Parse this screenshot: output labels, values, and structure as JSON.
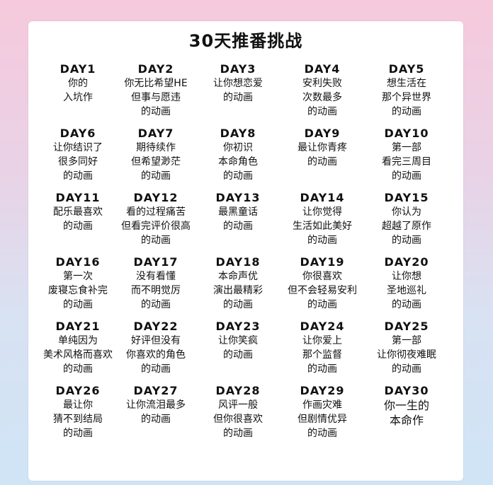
{
  "title": "30天推番挑战",
  "days": [
    {
      "label": "DAY1",
      "text": "你的\n入坑作"
    },
    {
      "label": "DAY2",
      "text": "你无比希望HE\n但事与愿违\n的动画"
    },
    {
      "label": "DAY3",
      "text": "让你想恋爱\n的动画"
    },
    {
      "label": "DAY4",
      "text": "安利失败\n次数最多\n的动画"
    },
    {
      "label": "DAY5",
      "text": "想生活在\n那个异世界\n的动画"
    },
    {
      "label": "DAY6",
      "text": "让你结识了\n很多同好\n的动画"
    },
    {
      "label": "DAY7",
      "text": "期待续作\n但希望渺茫\n的动画"
    },
    {
      "label": "DAY8",
      "text": "你初识\n本命角色\n的动画"
    },
    {
      "label": "DAY9",
      "text": "最让你青疼\n的动画"
    },
    {
      "label": "DAY10",
      "text": "第一部\n看完三周目\n的动画"
    },
    {
      "label": "DAY11",
      "text": "配乐最喜欢\n的动画"
    },
    {
      "label": "DAY12",
      "text": "看的过程痛苦\n但看完评价很高\n的动画"
    },
    {
      "label": "DAY13",
      "text": "最黑童话\n的动画"
    },
    {
      "label": "DAY14",
      "text": "让你觉得\n生活如此美好\n的动画"
    },
    {
      "label": "DAY15",
      "text": "你认为\n超越了原作\n的动画"
    },
    {
      "label": "DAY16",
      "text": "第一次\n废寝忘食补完\n的动画"
    },
    {
      "label": "DAY17",
      "text": "没有看懂\n而不明觉厉\n的动画"
    },
    {
      "label": "DAY18",
      "text": "本命声优\n演出最精彩\n的动画"
    },
    {
      "label": "DAY19",
      "text": "你很喜欢\n但不会轻易安利\n的动画"
    },
    {
      "label": "DAY20",
      "text": "让你想\n圣地巡礼\n的动画"
    },
    {
      "label": "DAY21",
      "text": "单纯因为\n美术风格而喜欢\n的动画"
    },
    {
      "label": "DAY22",
      "text": "好评但没有\n你喜欢的角色\n的动画"
    },
    {
      "label": "DAY23",
      "text": "让你笑疯\n的动画"
    },
    {
      "label": "DAY24",
      "text": "让你爱上\n那个监督\n的动画"
    },
    {
      "label": "DAY25",
      "text": "第一部\n让你彻夜难眠\n的动画"
    },
    {
      "label": "DAY26",
      "text": "最让你\n猜不到结局\n的动画"
    },
    {
      "label": "DAY27",
      "text": "让你流泪最多\n的动画"
    },
    {
      "label": "DAY28",
      "text": "风评一般\n但你很喜欢\n的动画"
    },
    {
      "label": "DAY29",
      "text": "作画灾难\n但剧情优异\n的动画"
    },
    {
      "label": "DAY30",
      "text": "你一生的\n本命作"
    }
  ]
}
